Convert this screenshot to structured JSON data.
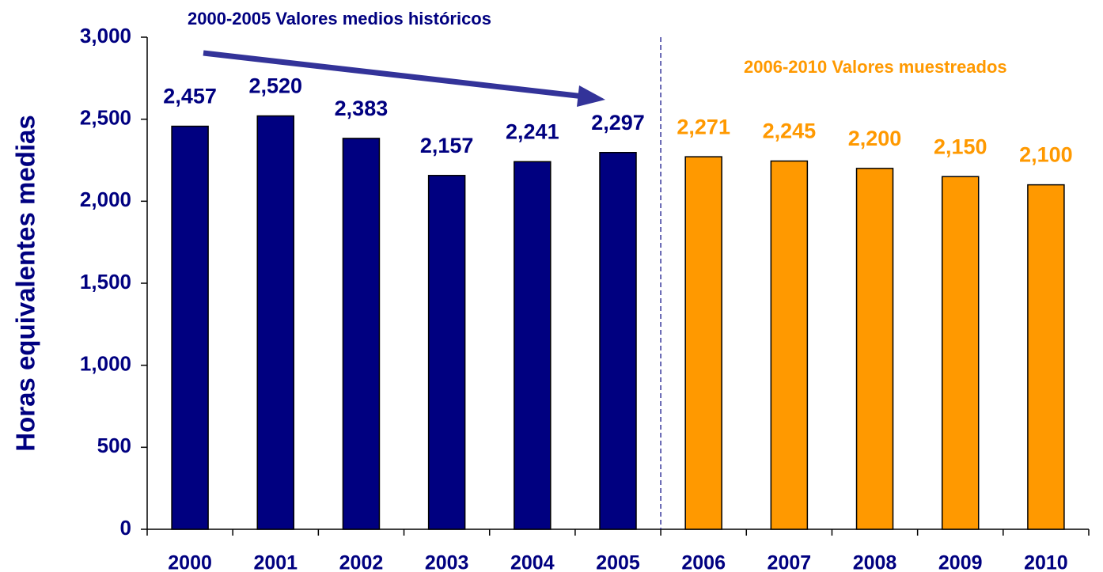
{
  "chart_data": {
    "type": "bar",
    "y_label": "Horas equivalentes medias",
    "annotations": [
      "2000-2005 Valores medios históricos",
      "2006-2010 Valores muestreados"
    ],
    "categories": [
      "2000",
      "2001",
      "2002",
      "2003",
      "2004",
      "2005",
      "2006",
      "2007",
      "2008",
      "2009",
      "2010"
    ],
    "values": [
      2457,
      2520,
      2383,
      2157,
      2241,
      2297,
      2271,
      2245,
      2200,
      2150,
      2100
    ],
    "value_labels": [
      "2,457",
      "2,520",
      "2,383",
      "2,157",
      "2,241",
      "2,297",
      "2,271",
      "2,245",
      "2,200",
      "2,150",
      "2,100"
    ],
    "colors": [
      "#000080",
      "#000080",
      "#000080",
      "#000080",
      "#000080",
      "#000080",
      "#ff9900",
      "#ff9900",
      "#ff9900",
      "#ff9900",
      "#ff9900"
    ],
    "ylim": [
      0,
      3000
    ],
    "yticks": [
      0,
      {
        "value": 500,
        "label": "500"
      },
      {
        "value": 1000,
        "label": "1,000"
      },
      {
        "value": 1500,
        "label": "1,500"
      },
      {
        "value": 2000,
        "label": "2,000"
      },
      {
        "value": 2500,
        "label": "2,500"
      },
      {
        "value": 3000,
        "label": "3,000"
      }
    ],
    "grid": false
  }
}
